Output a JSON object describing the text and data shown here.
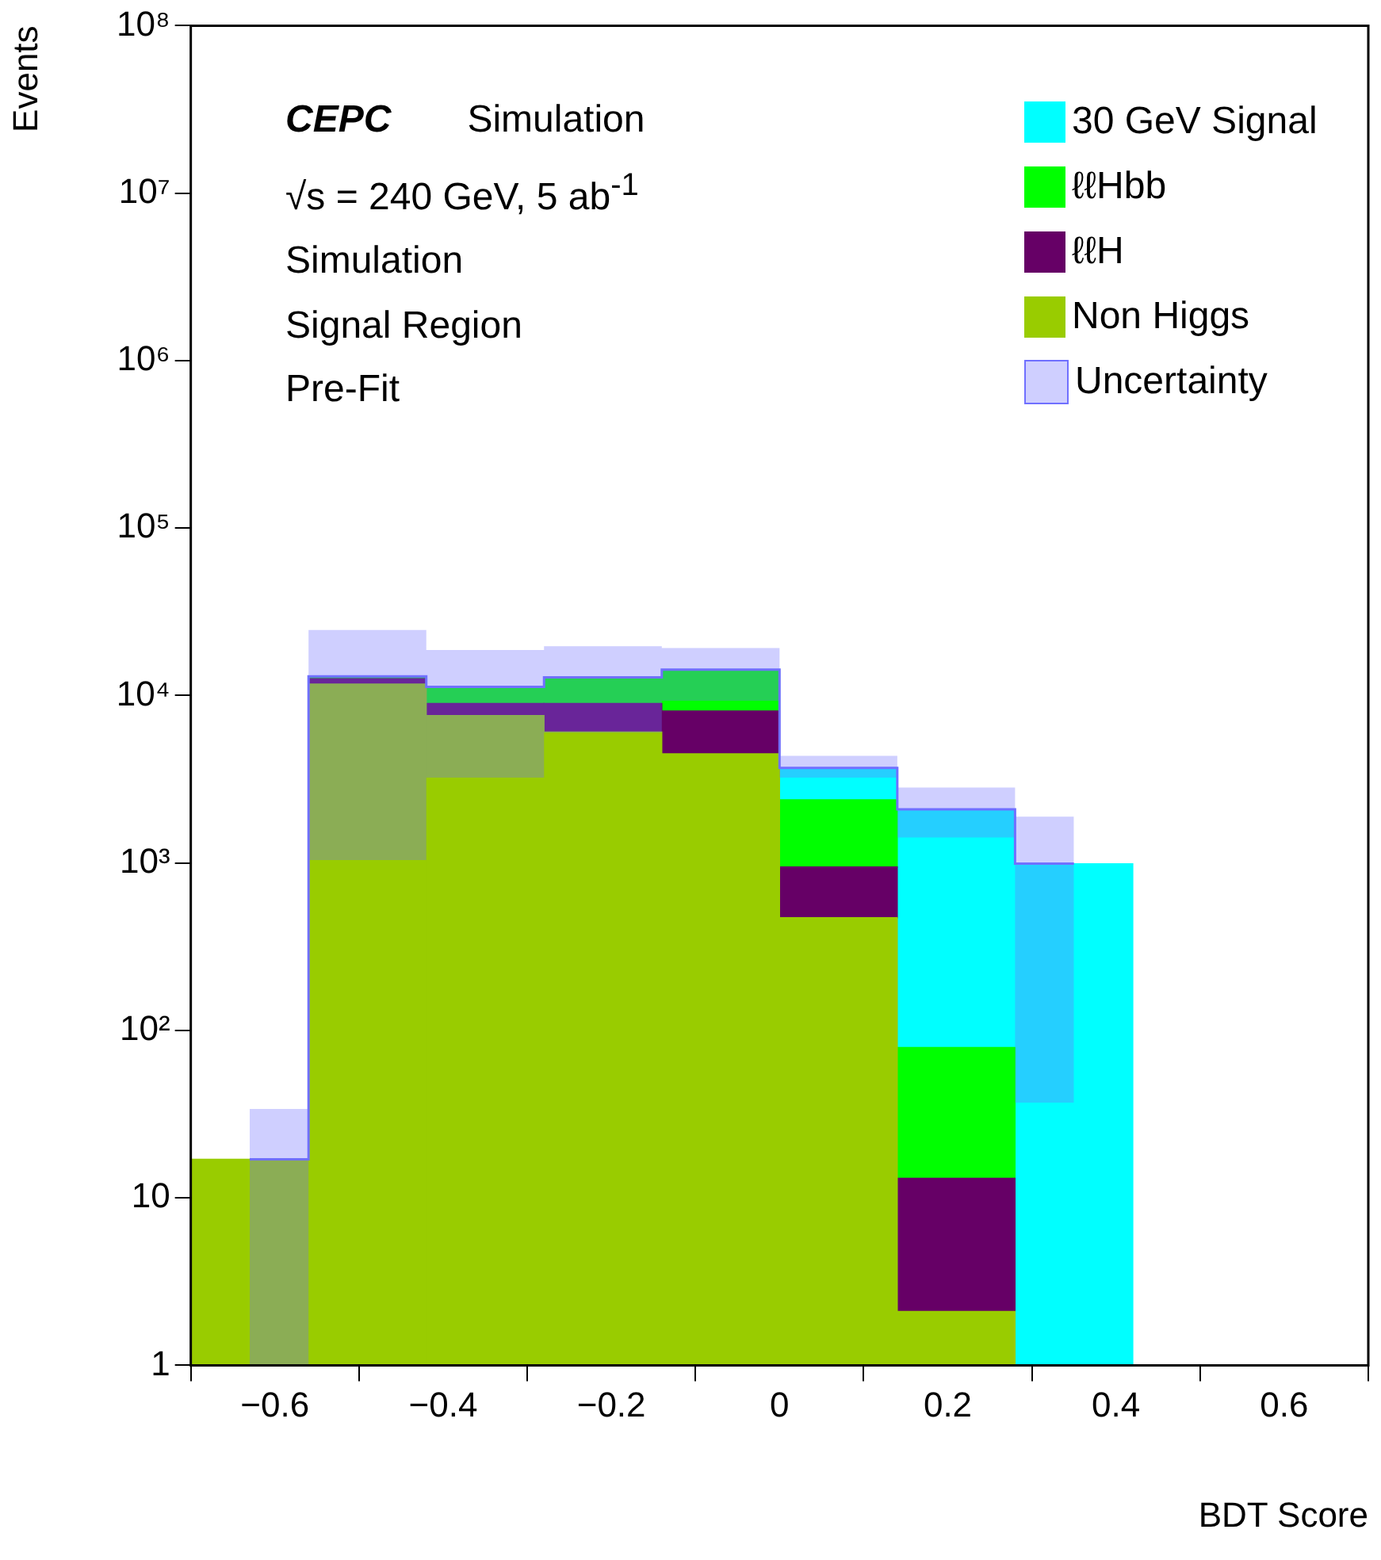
{
  "chart_data": {
    "type": "bar",
    "stacked": true,
    "log": "y",
    "grid": false,
    "legend": "top right",
    "xlabel": "BDT Score",
    "ylabel": "Events",
    "annotations": [
      "CEPC",
      "Simulation",
      "√s = 240 GeV, 5 ab$^{-1}$",
      "Simulation",
      "Signal Region",
      "Pre-Fit"
    ],
    "x": [
      -0.63,
      -0.49,
      -0.35,
      -0.21,
      -0.07,
      0.07,
      0.21,
      0.35
    ],
    "xlim": [
      -0.7,
      0.7
    ],
    "xticks": [
      {
        "value": -0.6,
        "label": "−0.6"
      },
      {
        "value": -0.4,
        "label": "−0.4"
      },
      {
        "value": -0.2,
        "label": "−0.2"
      },
      0,
      0.2,
      0.4,
      0.6
    ],
    "ylim": [
      1,
      100000000
    ],
    "yticks": [
      1,
      10,
      {
        "value": 100,
        "label": "10²"
      },
      {
        "value": 1000,
        "label": "10³"
      },
      {
        "value": 10000,
        "label": "10⁴"
      },
      {
        "value": 100000,
        "label": "10⁵"
      },
      {
        "value": 1000000,
        "label": "10⁶"
      },
      {
        "value": 10000000,
        "label": "10⁷"
      },
      {
        "value": 100000000,
        "label": "10⁸"
      }
    ],
    "series": [
      {
        "name": "Non Higgs",
        "color": "#99cc00",
        "values": [
          17,
          11700,
          7600,
          6050,
          4490,
          471,
          2.1,
          null
        ]
      },
      {
        "name": "ℓℓH",
        "color": "#660066",
        "values": [
          null,
          900,
          1370,
          2920,
          3600,
          475,
          11,
          null
        ]
      },
      {
        "name": "ℓℓHbb",
        "color": "#00ff00",
        "values": [
          null,
          400,
          2280,
          3880,
          6170,
          1440,
          66,
          null
        ]
      },
      {
        "name": "30 GeV Signal",
        "color": "#00ffff",
        "values": [
          null,
          null,
          null,
          null,
          null,
          1310,
          2010,
          990
        ]
      },
      {
        "name": "Uncertainty",
        "type": "step",
        "color": "#7070ff",
        "x": [
          -0.63,
          -0.49,
          -0.35,
          -0.21,
          -0.07,
          0.07,
          0.21,
          0.35
        ],
        "values": [
          17,
          13000,
          11250,
          12850,
          14260,
          3696,
          2089,
          990
        ],
        "lower": [
          1,
          1040,
          3230,
          6000,
          9300,
          3230,
          1420,
          37
        ],
        "upper": [
          34,
          24600,
          18700,
          19700,
          19200,
          4360,
          2820,
          1890
        ]
      }
    ]
  }
}
